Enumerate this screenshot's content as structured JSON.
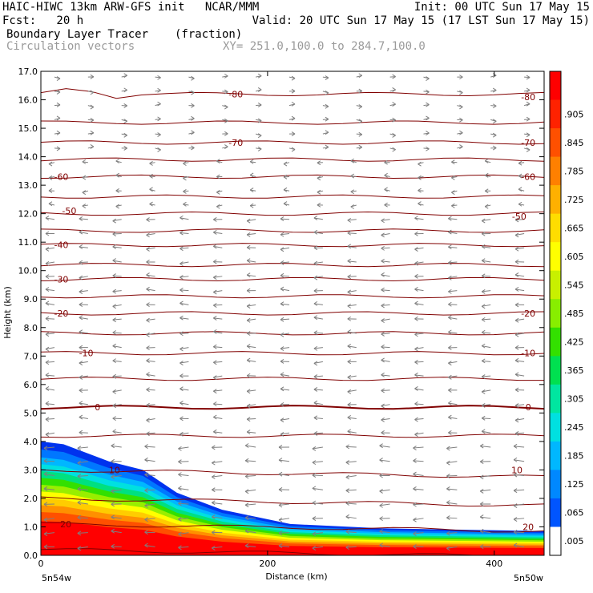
{
  "header": {
    "line1_left": "HAIC-HIWC 13km ARW-GFS init   NCAR/MMM",
    "line1_right": "Init: 00 UTC Sun 17 May 15",
    "line2_left": "Fcst:   20 h",
    "line2_right": "Valid: 20 UTC Sun 17 May 15 (17 LST Sun 17 May 15)",
    "field_name": "Boundary Layer Tracer",
    "field_units": "(fraction)",
    "overlay_name": "Circulation vectors",
    "xy_range": "XY= 251.0,100.0 to 284.7,100.0"
  },
  "chart_data": {
    "type": "heatmap",
    "title": "Boundary Layer Tracer",
    "xlabel": "Distance (km)",
    "ylabel": "Height (km)",
    "xlim": [
      0,
      444
    ],
    "ylim": [
      0,
      17
    ],
    "x_ticks": [
      0,
      200,
      400
    ],
    "y_ticks": [
      "0.0",
      "1.0",
      "2.0",
      "3.0",
      "4.0",
      "5.0",
      "6.0",
      "7.0",
      "8.0",
      "9.0",
      "10.0",
      "11.0",
      "12.0",
      "13.0",
      "14.0",
      "15.0",
      "16.0",
      "17.0"
    ],
    "x_endpoint_labels": {
      "left": "5n54w",
      "right": "5n50w"
    },
    "colorbar": {
      "labels": [
        ".005",
        ".065",
        ".125",
        ".185",
        ".245",
        ".305",
        ".365",
        ".425",
        ".485",
        ".545",
        ".605",
        ".665",
        ".725",
        ".785",
        ".845",
        ".905"
      ],
      "colors": [
        "#ffffff",
        "#0055ff",
        "#0088ff",
        "#00b7ff",
        "#00e0e0",
        "#00e6a0",
        "#00e050",
        "#33e000",
        "#88ee00",
        "#c8f000",
        "#ffff00",
        "#ffdd00",
        "#ffb000",
        "#ff8000",
        "#ff5000",
        "#ff2200",
        "#ff0000"
      ]
    },
    "tracer_top_km": [
      {
        "x": 0,
        "top": 4.0
      },
      {
        "x": 20,
        "top": 3.9
      },
      {
        "x": 60,
        "top": 3.3
      },
      {
        "x": 90,
        "top": 3.0
      },
      {
        "x": 120,
        "top": 2.2
      },
      {
        "x": 160,
        "top": 1.6
      },
      {
        "x": 220,
        "top": 1.1
      },
      {
        "x": 300,
        "top": 0.95
      },
      {
        "x": 444,
        "top": 0.85
      }
    ],
    "isotherm_labels": [
      {
        "value": "-80",
        "x": 172,
        "z": 16.2
      },
      {
        "value": "-80",
        "x": 430,
        "z": 16.1
      },
      {
        "value": "-70",
        "x": 172,
        "z": 14.5
      },
      {
        "value": "-70",
        "x": 430,
        "z": 14.5
      },
      {
        "value": "-60",
        "x": 18,
        "z": 13.3
      },
      {
        "value": "-60",
        "x": 430,
        "z": 13.3
      },
      {
        "value": "-50",
        "x": 25,
        "z": 12.1
      },
      {
        "value": "-50",
        "x": 422,
        "z": 11.9
      },
      {
        "value": "-40",
        "x": 18,
        "z": 10.9
      },
      {
        "value": "-30",
        "x": 18,
        "z": 9.7
      },
      {
        "value": "-20",
        "x": 18,
        "z": 8.5
      },
      {
        "value": "-20",
        "x": 430,
        "z": 8.5
      },
      {
        "value": "-10",
        "x": 40,
        "z": 7.1
      },
      {
        "value": "-10",
        "x": 430,
        "z": 7.1
      },
      {
        "value": "0",
        "x": 50,
        "z": 5.2
      },
      {
        "value": "0",
        "x": 430,
        "z": 5.2
      },
      {
        "value": "10",
        "x": 65,
        "z": 3.0
      },
      {
        "value": "10",
        "x": 420,
        "z": 3.0
      },
      {
        "value": "20",
        "x": 22,
        "z": 1.1
      },
      {
        "value": "20",
        "x": 430,
        "z": 1.0
      }
    ]
  }
}
